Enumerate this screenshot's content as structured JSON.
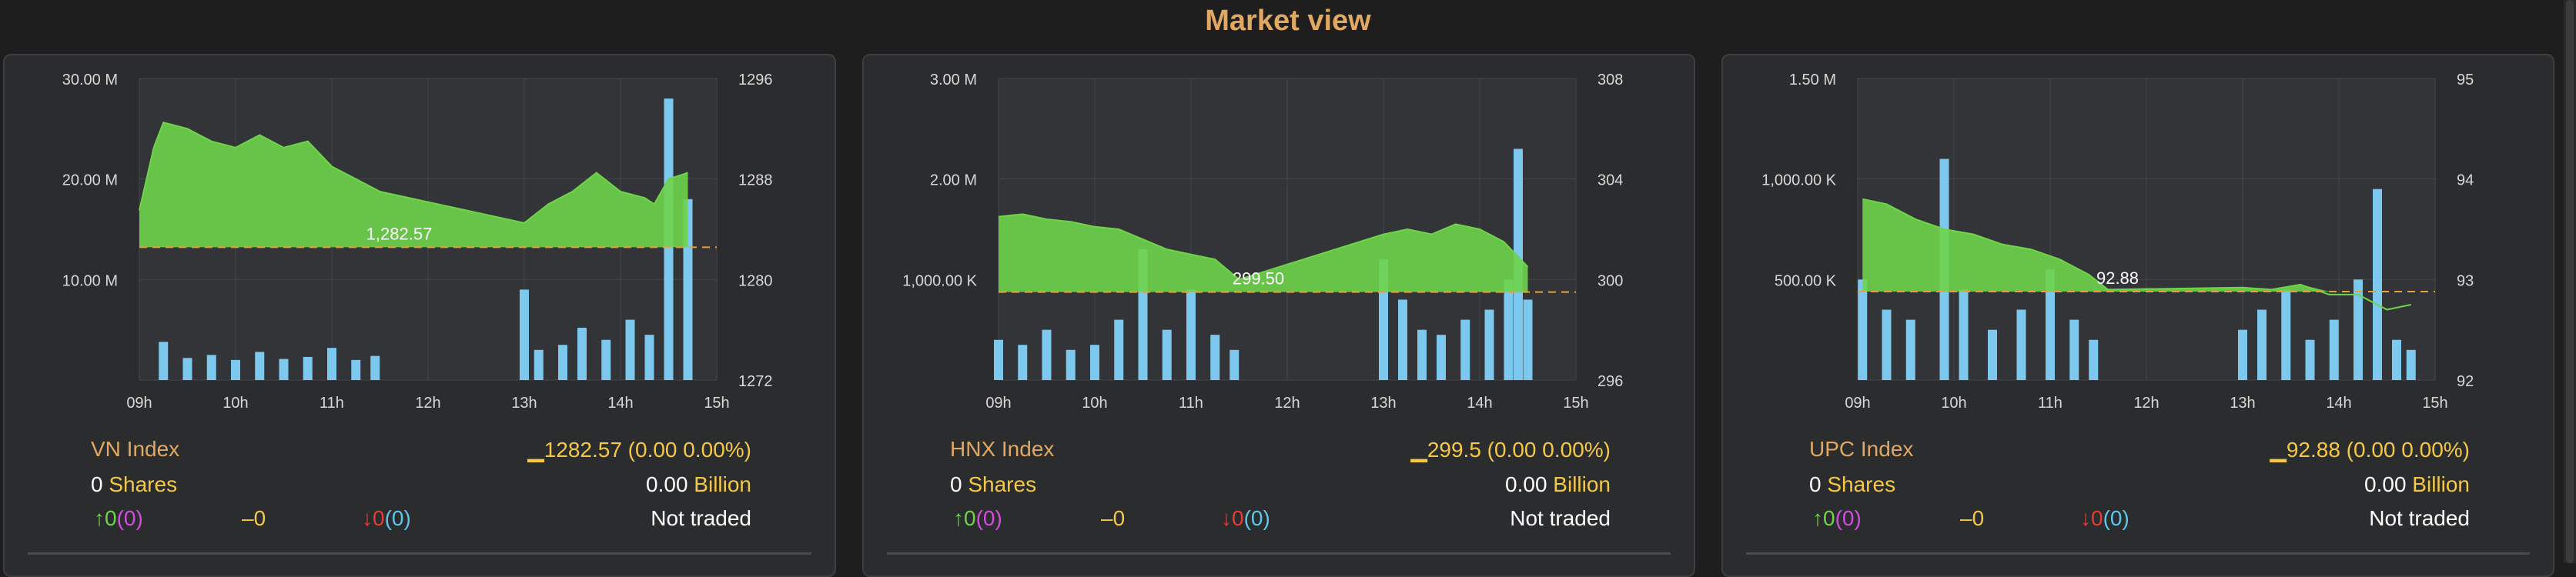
{
  "page": {
    "title": "Market view"
  },
  "colors": {
    "accent": "#e0a862",
    "up": "#6ed44a",
    "down": "#e83b34",
    "ref": "#f5c945",
    "volume": "#7cc8ee"
  },
  "panels": [
    {
      "name": "VN Index",
      "value_text": "1282.57 (0.00 0.00%)",
      "shares_num": "0",
      "shares_label": "Shares",
      "billion_num": "0.00",
      "billion_label": "Billion",
      "up_count": "0",
      "up_paren": "(0)",
      "flat_count": "0",
      "down_count": "0",
      "down_paren": "(0)",
      "status": "Not traded",
      "chart_data": {
        "type": "line",
        "ref_value": 1282.57,
        "ref_label": "1,282.57",
        "left_ticks": [
          "30.00 M",
          "20.00 M",
          "10.00 M"
        ],
        "right_ticks": [
          "1296",
          "1288",
          "1280",
          "1272"
        ],
        "x_ticks": [
          "09h",
          "10h",
          "11h",
          "12h",
          "13h",
          "14h",
          "15h"
        ],
        "left_range": [
          0,
          30000000
        ],
        "right_range": [
          1272,
          1296
        ],
        "price": [
          [
            9.0,
            1285.5
          ],
          [
            9.15,
            1290.5
          ],
          [
            9.25,
            1292.5
          ],
          [
            9.5,
            1292
          ],
          [
            9.75,
            1291
          ],
          [
            10.0,
            1290.5
          ],
          [
            10.25,
            1291.5
          ],
          [
            10.5,
            1290.5
          ],
          [
            10.75,
            1291
          ],
          [
            11.0,
            1289
          ],
          [
            11.25,
            1288
          ],
          [
            11.5,
            1287
          ],
          [
            13.0,
            1284.5
          ],
          [
            13.25,
            1286
          ],
          [
            13.5,
            1287
          ],
          [
            13.75,
            1288.5
          ],
          [
            14.0,
            1287
          ],
          [
            14.25,
            1286.5
          ],
          [
            14.35,
            1286
          ],
          [
            14.5,
            1288
          ],
          [
            14.7,
            1288.5
          ]
        ],
        "volume": [
          [
            9.25,
            3.8
          ],
          [
            9.5,
            2.2
          ],
          [
            9.75,
            2.5
          ],
          [
            10.0,
            2.0
          ],
          [
            10.25,
            2.8
          ],
          [
            10.5,
            2.1
          ],
          [
            10.75,
            2.3
          ],
          [
            11.0,
            3.2
          ],
          [
            11.25,
            2.0
          ],
          [
            11.45,
            2.4
          ],
          [
            13.0,
            9.0
          ],
          [
            13.15,
            3.0
          ],
          [
            13.4,
            3.5
          ],
          [
            13.6,
            5.2
          ],
          [
            13.85,
            4.0
          ],
          [
            14.1,
            6.0
          ],
          [
            14.3,
            4.5
          ],
          [
            14.5,
            28.0
          ],
          [
            14.7,
            18.0
          ]
        ]
      }
    },
    {
      "name": "HNX Index",
      "value_text": "299.5 (0.00 0.00%)",
      "shares_num": "0",
      "shares_label": "Shares",
      "billion_num": "0.00",
      "billion_label": "Billion",
      "up_count": "0",
      "up_paren": "(0)",
      "flat_count": "0",
      "down_count": "0",
      "down_paren": "(0)",
      "status": "Not traded",
      "chart_data": {
        "type": "line",
        "ref_value": 299.5,
        "ref_label": "299.50",
        "left_ticks": [
          "3.00 M",
          "2.00 M",
          "1,000.00 K"
        ],
        "right_ticks": [
          "308",
          "304",
          "300",
          "296"
        ],
        "x_ticks": [
          "09h",
          "10h",
          "11h",
          "12h",
          "13h",
          "14h",
          "15h"
        ],
        "left_range": [
          0,
          3000000
        ],
        "right_range": [
          296,
          308
        ],
        "price": [
          [
            9.0,
            302.5
          ],
          [
            9.25,
            302.6
          ],
          [
            9.5,
            302.4
          ],
          [
            9.75,
            302.3
          ],
          [
            10.0,
            302.1
          ],
          [
            10.25,
            302.0
          ],
          [
            10.5,
            301.6
          ],
          [
            10.75,
            301.2
          ],
          [
            11.0,
            301.0
          ],
          [
            11.25,
            300.8
          ],
          [
            11.5,
            300.0
          ],
          [
            13.0,
            301.8
          ],
          [
            13.25,
            302.0
          ],
          [
            13.5,
            301.8
          ],
          [
            13.75,
            302.2
          ],
          [
            14.0,
            302.0
          ],
          [
            14.25,
            301.5
          ],
          [
            14.5,
            300.5
          ]
        ],
        "volume": [
          [
            9.0,
            0.4
          ],
          [
            9.25,
            0.35
          ],
          [
            9.5,
            0.5
          ],
          [
            9.75,
            0.3
          ],
          [
            10.0,
            0.35
          ],
          [
            10.25,
            0.6
          ],
          [
            10.5,
            1.3
          ],
          [
            10.75,
            0.5
          ],
          [
            11.0,
            0.9
          ],
          [
            11.25,
            0.45
          ],
          [
            11.45,
            0.3
          ],
          [
            13.0,
            1.2
          ],
          [
            13.2,
            0.8
          ],
          [
            13.4,
            0.5
          ],
          [
            13.6,
            0.45
          ],
          [
            13.85,
            0.6
          ],
          [
            14.1,
            0.7
          ],
          [
            14.3,
            1.0
          ],
          [
            14.4,
            2.3
          ],
          [
            14.5,
            0.8
          ]
        ]
      }
    },
    {
      "name": "UPC Index",
      "value_text": "92.88 (0.00 0.00%)",
      "shares_num": "0",
      "shares_label": "Shares",
      "billion_num": "0.00",
      "billion_label": "Billion",
      "up_count": "0",
      "up_paren": "(0)",
      "flat_count": "0",
      "down_count": "0",
      "down_paren": "(0)",
      "status": "Not traded",
      "chart_data": {
        "type": "line",
        "ref_value": 92.88,
        "ref_label": "92.88",
        "left_ticks": [
          "1.50 M",
          "1,000.00 K",
          "500.00 K"
        ],
        "right_ticks": [
          "95",
          "94",
          "93",
          "92"
        ],
        "x_ticks": [
          "09h",
          "10h",
          "11h",
          "12h",
          "13h",
          "14h",
          "15h"
        ],
        "left_range": [
          0,
          1500000
        ],
        "right_range": [
          92,
          95
        ],
        "price": [
          [
            9.05,
            93.8
          ],
          [
            9.3,
            93.75
          ],
          [
            9.6,
            93.6
          ],
          [
            9.9,
            93.5
          ],
          [
            10.2,
            93.45
          ],
          [
            10.5,
            93.35
          ],
          [
            10.8,
            93.3
          ],
          [
            11.1,
            93.2
          ],
          [
            11.4,
            93.05
          ],
          [
            11.6,
            92.9
          ],
          [
            13.0,
            92.92
          ],
          [
            13.3,
            92.9
          ],
          [
            13.6,
            92.95
          ],
          [
            13.9,
            92.85
          ],
          [
            14.2,
            92.85
          ],
          [
            14.5,
            92.7
          ],
          [
            14.75,
            92.75
          ]
        ],
        "volume": [
          [
            9.05,
            0.5
          ],
          [
            9.3,
            0.35
          ],
          [
            9.55,
            0.3
          ],
          [
            9.9,
            1.1
          ],
          [
            10.1,
            0.45
          ],
          [
            10.4,
            0.25
          ],
          [
            10.7,
            0.35
          ],
          [
            11.0,
            0.55
          ],
          [
            11.25,
            0.3
          ],
          [
            11.45,
            0.2
          ],
          [
            13.0,
            0.25
          ],
          [
            13.2,
            0.35
          ],
          [
            13.45,
            0.45
          ],
          [
            13.7,
            0.2
          ],
          [
            13.95,
            0.3
          ],
          [
            14.2,
            0.5
          ],
          [
            14.4,
            0.95
          ],
          [
            14.6,
            0.2
          ],
          [
            14.75,
            0.15
          ]
        ]
      }
    }
  ]
}
